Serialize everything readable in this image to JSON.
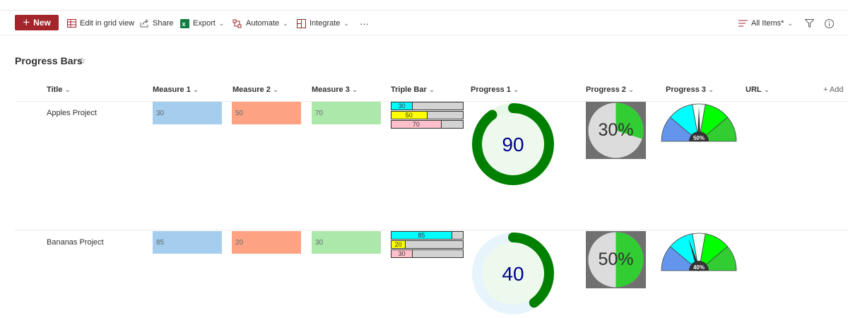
{
  "toolbar": {
    "new_label": "New",
    "edit_grid_label": "Edit in grid view",
    "share_label": "Share",
    "export_label": "Export",
    "automate_label": "Automate",
    "integrate_label": "Integrate",
    "more_label": "···",
    "view_label": "All Items*"
  },
  "page": {
    "title": "Progress Bars"
  },
  "columns": {
    "title": "Title",
    "m1": "Measure 1",
    "m2": "Measure 2",
    "m3": "Measure 3",
    "triple": "Triple Bar",
    "p1": "Progress 1",
    "p2": "Progress 2",
    "p3": "Progress 3",
    "url": "URL",
    "add": "+ Add"
  },
  "rows": [
    {
      "title": "Apples Project",
      "m1": "30",
      "m2": "50",
      "m3": "70",
      "triple": [
        "30",
        "50",
        "70"
      ],
      "p1": "90",
      "p2": "30%",
      "p3": "50%",
      "values": {
        "triple": [
          30,
          50,
          70
        ],
        "p1": 90,
        "p2": 30,
        "p3": 50
      }
    },
    {
      "title": "Bananas Project",
      "m1": "85",
      "m2": "20",
      "m3": "30",
      "triple": [
        "85",
        "20",
        "30"
      ],
      "p1": "40",
      "p2": "50%",
      "p3": "40%",
      "values": {
        "triple": [
          85,
          20,
          30
        ],
        "p1": 40,
        "p2": 50,
        "p3": 40
      }
    }
  ],
  "colors": {
    "brand": "#a4262c",
    "measure1": "#a4cdee",
    "measure2": "#fda384",
    "measure3": "#ade8ab",
    "triple1": "#00ffff",
    "triple2": "#ffff00",
    "triple3": "#ffc0cb",
    "ring": "#008000",
    "ring_text": "#00008b",
    "pie_fill": "#32cd32"
  }
}
